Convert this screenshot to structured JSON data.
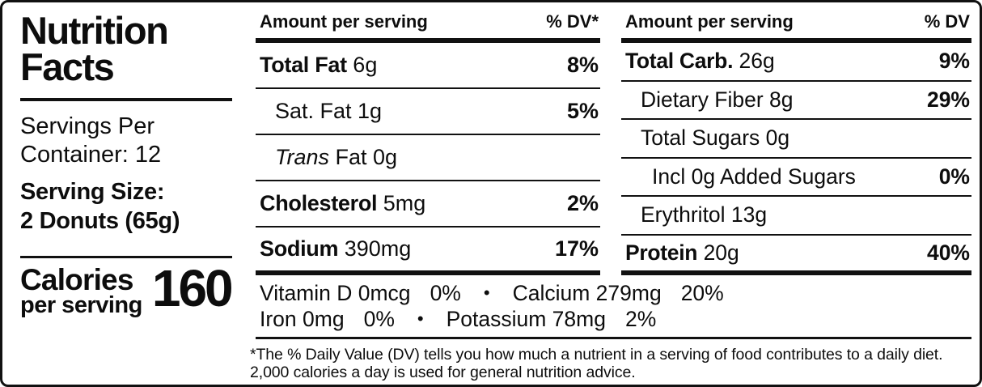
{
  "colors": {
    "text": "#0d0d0d",
    "background": "#ffffff",
    "rule": "#111111"
  },
  "label": {
    "title_line1": "Nutrition",
    "title_line2": "Facts",
    "servings_line1": "Servings Per",
    "servings_line2": "Container: 12",
    "serving_size_line1": "Serving Size:",
    "serving_size_line2": "2 Donuts (65g)",
    "calories_line1": "Calories",
    "calories_line2": "per serving",
    "calories_value": "160"
  },
  "columns": [
    {
      "header_left": "Amount per serving",
      "header_right": "% DV*",
      "rows": [
        {
          "bold": "Total Fat",
          "rest": " 6g",
          "dv": "8%"
        },
        {
          "rest": "Sat. Fat 1g",
          "dv": "5%"
        },
        {
          "italic": "Trans",
          "rest": " Fat 0g",
          "dv": ""
        },
        {
          "bold": "Cholesterol",
          "rest": " 5mg",
          "dv": "2%"
        },
        {
          "bold": "Sodium",
          "rest": " 390mg",
          "dv": "17%"
        }
      ]
    },
    {
      "header_left": "Amount per serving",
      "header_right": "% DV",
      "rows": [
        {
          "bold": "Total Carb.",
          "rest": " 26g",
          "dv": "9%"
        },
        {
          "rest": "Dietary Fiber 8g",
          "dv": "29%"
        },
        {
          "rest": "Total Sugars 0g",
          "dv": ""
        },
        {
          "rest": "Incl 0g Added Sugars",
          "dv": "0%"
        },
        {
          "rest": "Erythritol 13g",
          "dv": ""
        },
        {
          "bold": "Protein",
          "rest": " 20g",
          "dv": "40%"
        }
      ]
    }
  ],
  "micronutrients": {
    "separator": "•",
    "line1": [
      {
        "name": "Vitamin D 0mcg",
        "dv": "0%"
      },
      {
        "name": "Calcium 279mg",
        "dv": "20%"
      }
    ],
    "line2": [
      {
        "name": "Iron 0mg",
        "dv": "0%"
      },
      {
        "name": "Potassium 78mg",
        "dv": "2%"
      }
    ]
  },
  "footnote": {
    "line1": "*The % Daily Value (DV) tells you how much a nutrient in a serving of food contributes to a daily diet.",
    "line2": "2,000 calories a day is used for general nutrition advice."
  }
}
